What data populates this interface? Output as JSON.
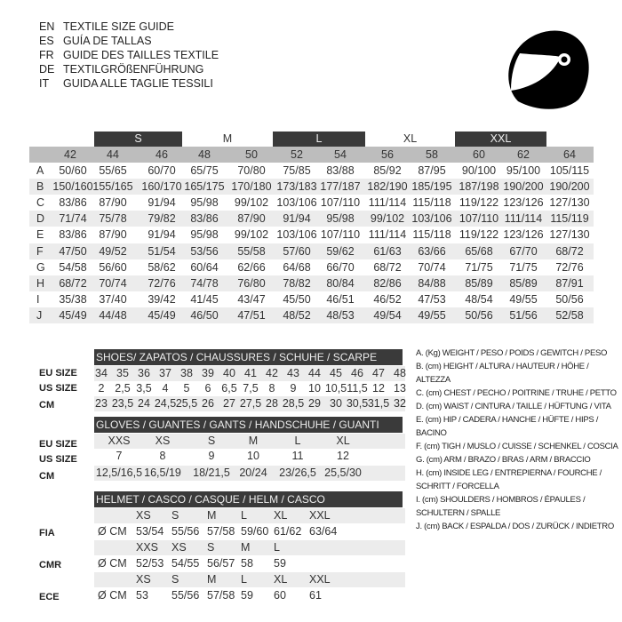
{
  "titles": [
    {
      "code": "EN",
      "text": "TEXTILE SIZE GUIDE"
    },
    {
      "code": "ES",
      "text": "GUÍA DE TALLAS"
    },
    {
      "code": "FR",
      "text": "GUIDE DES TAILLES TEXTILE"
    },
    {
      "code": "DE",
      "text": "TEXTILGRÖßENFÜHRUNG"
    },
    {
      "code": "IT",
      "text": "GUIDA ALLE TAGLIE TESSILI"
    }
  ],
  "icon": "helmet-icon",
  "colors": {
    "dark_bar": "#3a3a3a",
    "number_row": "#bdbdbd",
    "shade_row": "#ececec"
  },
  "textile": {
    "size_groups": [
      "S",
      "M",
      "L",
      "XL",
      "XXL"
    ],
    "sizes": [
      "42",
      "44",
      "46",
      "48",
      "50",
      "52",
      "54",
      "56",
      "58",
      "60",
      "62",
      "64"
    ],
    "rows": [
      {
        "key": "A",
        "values": [
          "50/60",
          "55/65",
          "60/70",
          "65/75",
          "70/80",
          "75/85",
          "83/88",
          "85/92",
          "87/95",
          "90/100",
          "95/100",
          "105/115"
        ]
      },
      {
        "key": "B",
        "values": [
          "150/160",
          "155/165",
          "160/170",
          "165/175",
          "170/180",
          "173/183",
          "177/187",
          "182/190",
          "185/195",
          "187/198",
          "190/200",
          "190/200"
        ]
      },
      {
        "key": "C",
        "values": [
          "83/86",
          "87/90",
          "91/94",
          "95/98",
          "99/102",
          "103/106",
          "107/110",
          "111/114",
          "115/118",
          "119/122",
          "123/126",
          "127/130"
        ]
      },
      {
        "key": "D",
        "values": [
          "71/74",
          "75/78",
          "79/82",
          "83/86",
          "87/90",
          "91/94",
          "95/98",
          "99/102",
          "103/106",
          "107/110",
          "111/114",
          "115/119"
        ]
      },
      {
        "key": "E",
        "values": [
          "83/86",
          "87/90",
          "91/94",
          "95/98",
          "99/102",
          "103/106",
          "107/110",
          "111/114",
          "115/118",
          "119/122",
          "123/126",
          "127/130"
        ]
      },
      {
        "key": "F",
        "values": [
          "47/50",
          "49/52",
          "51/54",
          "53/56",
          "55/58",
          "57/60",
          "59/62",
          "61/63",
          "63/66",
          "65/68",
          "67/70",
          "68/72"
        ]
      },
      {
        "key": "G",
        "values": [
          "54/58",
          "56/60",
          "58/62",
          "60/64",
          "62/66",
          "64/68",
          "66/70",
          "68/72",
          "70/74",
          "71/75",
          "71/75",
          "72/76"
        ]
      },
      {
        "key": "H",
        "values": [
          "68/72",
          "70/74",
          "72/76",
          "74/78",
          "76/80",
          "78/82",
          "80/84",
          "82/86",
          "84/88",
          "85/89",
          "85/89",
          "87/91"
        ]
      },
      {
        "key": "I",
        "values": [
          "35/38",
          "37/40",
          "39/42",
          "41/45",
          "43/47",
          "45/50",
          "46/51",
          "46/52",
          "47/53",
          "48/54",
          "49/55",
          "50/56"
        ]
      },
      {
        "key": "J",
        "values": [
          "45/49",
          "44/48",
          "45/49",
          "46/50",
          "47/51",
          "48/52",
          "48/53",
          "49/54",
          "49/55",
          "50/56",
          "51/56",
          "52/58"
        ]
      }
    ]
  },
  "shoes": {
    "title": "SHOES/ ZAPATOS / CHAUSSURES / SCHUHE / SCARPE",
    "rows": [
      {
        "label": "EU SIZE",
        "values": [
          "34",
          "35",
          "36",
          "37",
          "38",
          "39",
          "40",
          "41",
          "42",
          "43",
          "44",
          "45",
          "46",
          "47",
          "48"
        ]
      },
      {
        "label": "US SIZE",
        "values": [
          "2",
          "2,5",
          "3,5",
          "4",
          "5",
          "6",
          "6,5",
          "7,5",
          "8",
          "9",
          "10",
          "10,5",
          "11,5",
          "12",
          "13"
        ]
      },
      {
        "label": "CM",
        "values": [
          "23",
          "23,5",
          "24",
          "24,5",
          "25,5",
          "26",
          "27",
          "27,5",
          "28",
          "28,5",
          "29",
          "30",
          "30,5",
          "31,5",
          "32"
        ]
      }
    ]
  },
  "gloves": {
    "title": "GLOVES / GUANTES / GANTS / HANDSCHUHE / GUANTI",
    "rows": [
      {
        "label": "EU SIZE",
        "values": [
          "XXS",
          "XS",
          "S",
          "M",
          "L",
          "XL"
        ]
      },
      {
        "label": "US SIZE",
        "values": [
          "7",
          "8",
          "9",
          "10",
          "11",
          "12"
        ]
      },
      {
        "label": "CM",
        "values": [
          "12,5/16,5",
          "16,5/19",
          "18/21,5",
          "20/24",
          "23/26,5",
          "25,5/30"
        ]
      }
    ]
  },
  "helmet": {
    "title": "HELMET / CASCO / CASQUE / HELM / CASCO",
    "standards": [
      {
        "label": "FIA",
        "unit": "Ø CM",
        "sizes": [
          "XS",
          "S",
          "M",
          "L",
          "XL",
          "XXL"
        ],
        "values": [
          "53/54",
          "55/56",
          "57/58",
          "59/60",
          "61/62",
          "63/64"
        ]
      },
      {
        "label": "CMR",
        "unit": "Ø CM",
        "sizes": [
          "XXS",
          "XS",
          "S",
          "M",
          "L"
        ],
        "values": [
          "52/53",
          "54/55",
          "56/57",
          "58",
          "59"
        ]
      },
      {
        "label": "ECE",
        "unit": "Ø CM",
        "sizes": [
          "XS",
          "S",
          "M",
          "L",
          "XL",
          "XXL"
        ],
        "values": [
          "53",
          "55/56",
          "57/58",
          "59",
          "60",
          "61"
        ]
      }
    ]
  },
  "legend": [
    "A. (Kg) WEIGHT / PESO / POIDS / GEWITCH / PESO",
    "B. (cm) HEIGHT / ALTURA / HAUTEUR / HÖHE / ALTEZZA",
    "C. (cm) CHEST / PECHO / POITRINE / TRUHE / PETTO",
    "D. (cm) WAIST / CINTURA / TAILLE / HÜFTUNG / VITA",
    "E. (cm) HIP / CADERA / HANCHE / HÜFTE / HIPS /  BACINO",
    "F.  (cm) TIGH / MUSLO / CUISSE / SCHENKEL / COSCIA",
    "G. (cm) ARM  / BRAZO / BRAS / ARM / BRACCIO",
    "H. (cm) INSIDE LEG / ENTREPIERNA / FOURCHE /",
    "SCHRITT / FORCELLA",
    "I.  (cm) SHOULDERS / HOMBROS / ÉPAULES /",
    "SCHULTERN / SPALLE",
    "J. (cm) BACK / ESPALDA / DOS / ZURÜCK / INDIETRO"
  ]
}
